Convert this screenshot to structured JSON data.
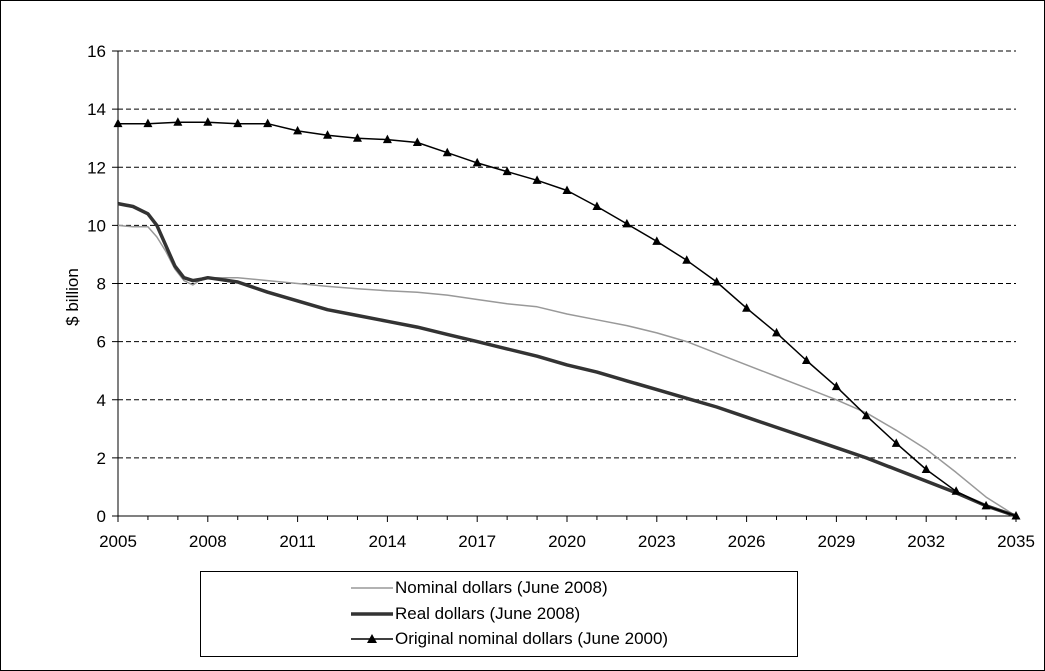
{
  "chart_data": {
    "type": "line",
    "title": "",
    "xlabel": "",
    "ylabel": "$ billion",
    "xlim": [
      2005,
      2035
    ],
    "ylim": [
      0,
      16
    ],
    "x_ticks": [
      2005,
      2008,
      2011,
      2014,
      2017,
      2020,
      2023,
      2026,
      2029,
      2032,
      2035
    ],
    "y_ticks": [
      0,
      2,
      4,
      6,
      8,
      10,
      12,
      14,
      16
    ],
    "grid": "horizontal dashed",
    "legend_position": "bottom",
    "series": [
      {
        "name": "Nominal dollars (June 2008)",
        "color": "#999999",
        "marker": "none",
        "points": [
          [
            2005,
            10.0
          ],
          [
            2005.5,
            9.95
          ],
          [
            2006,
            9.95
          ],
          [
            2006.3,
            9.6
          ],
          [
            2006.6,
            9.1
          ],
          [
            2006.9,
            8.5
          ],
          [
            2007.2,
            8.1
          ],
          [
            2007.5,
            7.95
          ],
          [
            2007.8,
            8.15
          ],
          [
            2008,
            8.2
          ],
          [
            2009,
            8.2
          ],
          [
            2010,
            8.1
          ],
          [
            2011,
            8.0
          ],
          [
            2012,
            7.9
          ],
          [
            2013,
            7.82
          ],
          [
            2014,
            7.75
          ],
          [
            2015,
            7.7
          ],
          [
            2016,
            7.6
          ],
          [
            2017,
            7.45
          ],
          [
            2018,
            7.3
          ],
          [
            2019,
            7.2
          ],
          [
            2020,
            6.95
          ],
          [
            2021,
            6.75
          ],
          [
            2022,
            6.55
          ],
          [
            2023,
            6.3
          ],
          [
            2024,
            6.0
          ],
          [
            2025,
            5.6
          ],
          [
            2026,
            5.2
          ],
          [
            2027,
            4.8
          ],
          [
            2028,
            4.4
          ],
          [
            2029,
            4.0
          ],
          [
            2030,
            3.55
          ],
          [
            2031,
            2.95
          ],
          [
            2032,
            2.3
          ],
          [
            2033,
            1.5
          ],
          [
            2034,
            0.65
          ],
          [
            2035,
            0.0
          ]
        ]
      },
      {
        "name": "Real dollars (June 2008)",
        "color": "#333333",
        "marker": "none",
        "points": [
          [
            2005,
            10.75
          ],
          [
            2005.5,
            10.65
          ],
          [
            2006,
            10.4
          ],
          [
            2006.3,
            10.0
          ],
          [
            2006.6,
            9.3
          ],
          [
            2006.9,
            8.6
          ],
          [
            2007.2,
            8.2
          ],
          [
            2007.5,
            8.1
          ],
          [
            2007.8,
            8.15
          ],
          [
            2008,
            8.2
          ],
          [
            2009,
            8.05
          ],
          [
            2010,
            7.7
          ],
          [
            2011,
            7.4
          ],
          [
            2012,
            7.1
          ],
          [
            2013,
            6.9
          ],
          [
            2014,
            6.7
          ],
          [
            2015,
            6.5
          ],
          [
            2016,
            6.25
          ],
          [
            2017,
            6.0
          ],
          [
            2018,
            5.75
          ],
          [
            2019,
            5.5
          ],
          [
            2020,
            5.2
          ],
          [
            2021,
            4.95
          ],
          [
            2022,
            4.65
          ],
          [
            2023,
            4.35
          ],
          [
            2024,
            4.05
          ],
          [
            2025,
            3.75
          ],
          [
            2026,
            3.4
          ],
          [
            2027,
            3.05
          ],
          [
            2028,
            2.7
          ],
          [
            2029,
            2.35
          ],
          [
            2030,
            2.0
          ],
          [
            2031,
            1.6
          ],
          [
            2032,
            1.2
          ],
          [
            2033,
            0.8
          ],
          [
            2034,
            0.35
          ],
          [
            2035,
            0.0
          ]
        ]
      },
      {
        "name": "Original nominal dollars (June 2000)",
        "color": "#000000",
        "marker": "triangle",
        "points": [
          [
            2005,
            13.5
          ],
          [
            2006,
            13.5
          ],
          [
            2007,
            13.55
          ],
          [
            2008,
            13.55
          ],
          [
            2009,
            13.5
          ],
          [
            2010,
            13.5
          ],
          [
            2011,
            13.25
          ],
          [
            2012,
            13.1
          ],
          [
            2013,
            13.0
          ],
          [
            2014,
            12.95
          ],
          [
            2015,
            12.85
          ],
          [
            2016,
            12.5
          ],
          [
            2017,
            12.15
          ],
          [
            2018,
            11.85
          ],
          [
            2019,
            11.55
          ],
          [
            2020,
            11.2
          ],
          [
            2021,
            10.65
          ],
          [
            2022,
            10.05
          ],
          [
            2023,
            9.45
          ],
          [
            2024,
            8.8
          ],
          [
            2025,
            8.05
          ],
          [
            2026,
            7.15
          ],
          [
            2027,
            6.3
          ],
          [
            2028,
            5.35
          ],
          [
            2029,
            4.45
          ],
          [
            2030,
            3.45
          ],
          [
            2031,
            2.5
          ],
          [
            2032,
            1.6
          ],
          [
            2033,
            0.85
          ],
          [
            2034,
            0.35
          ],
          [
            2035,
            0.0
          ]
        ]
      }
    ]
  }
}
